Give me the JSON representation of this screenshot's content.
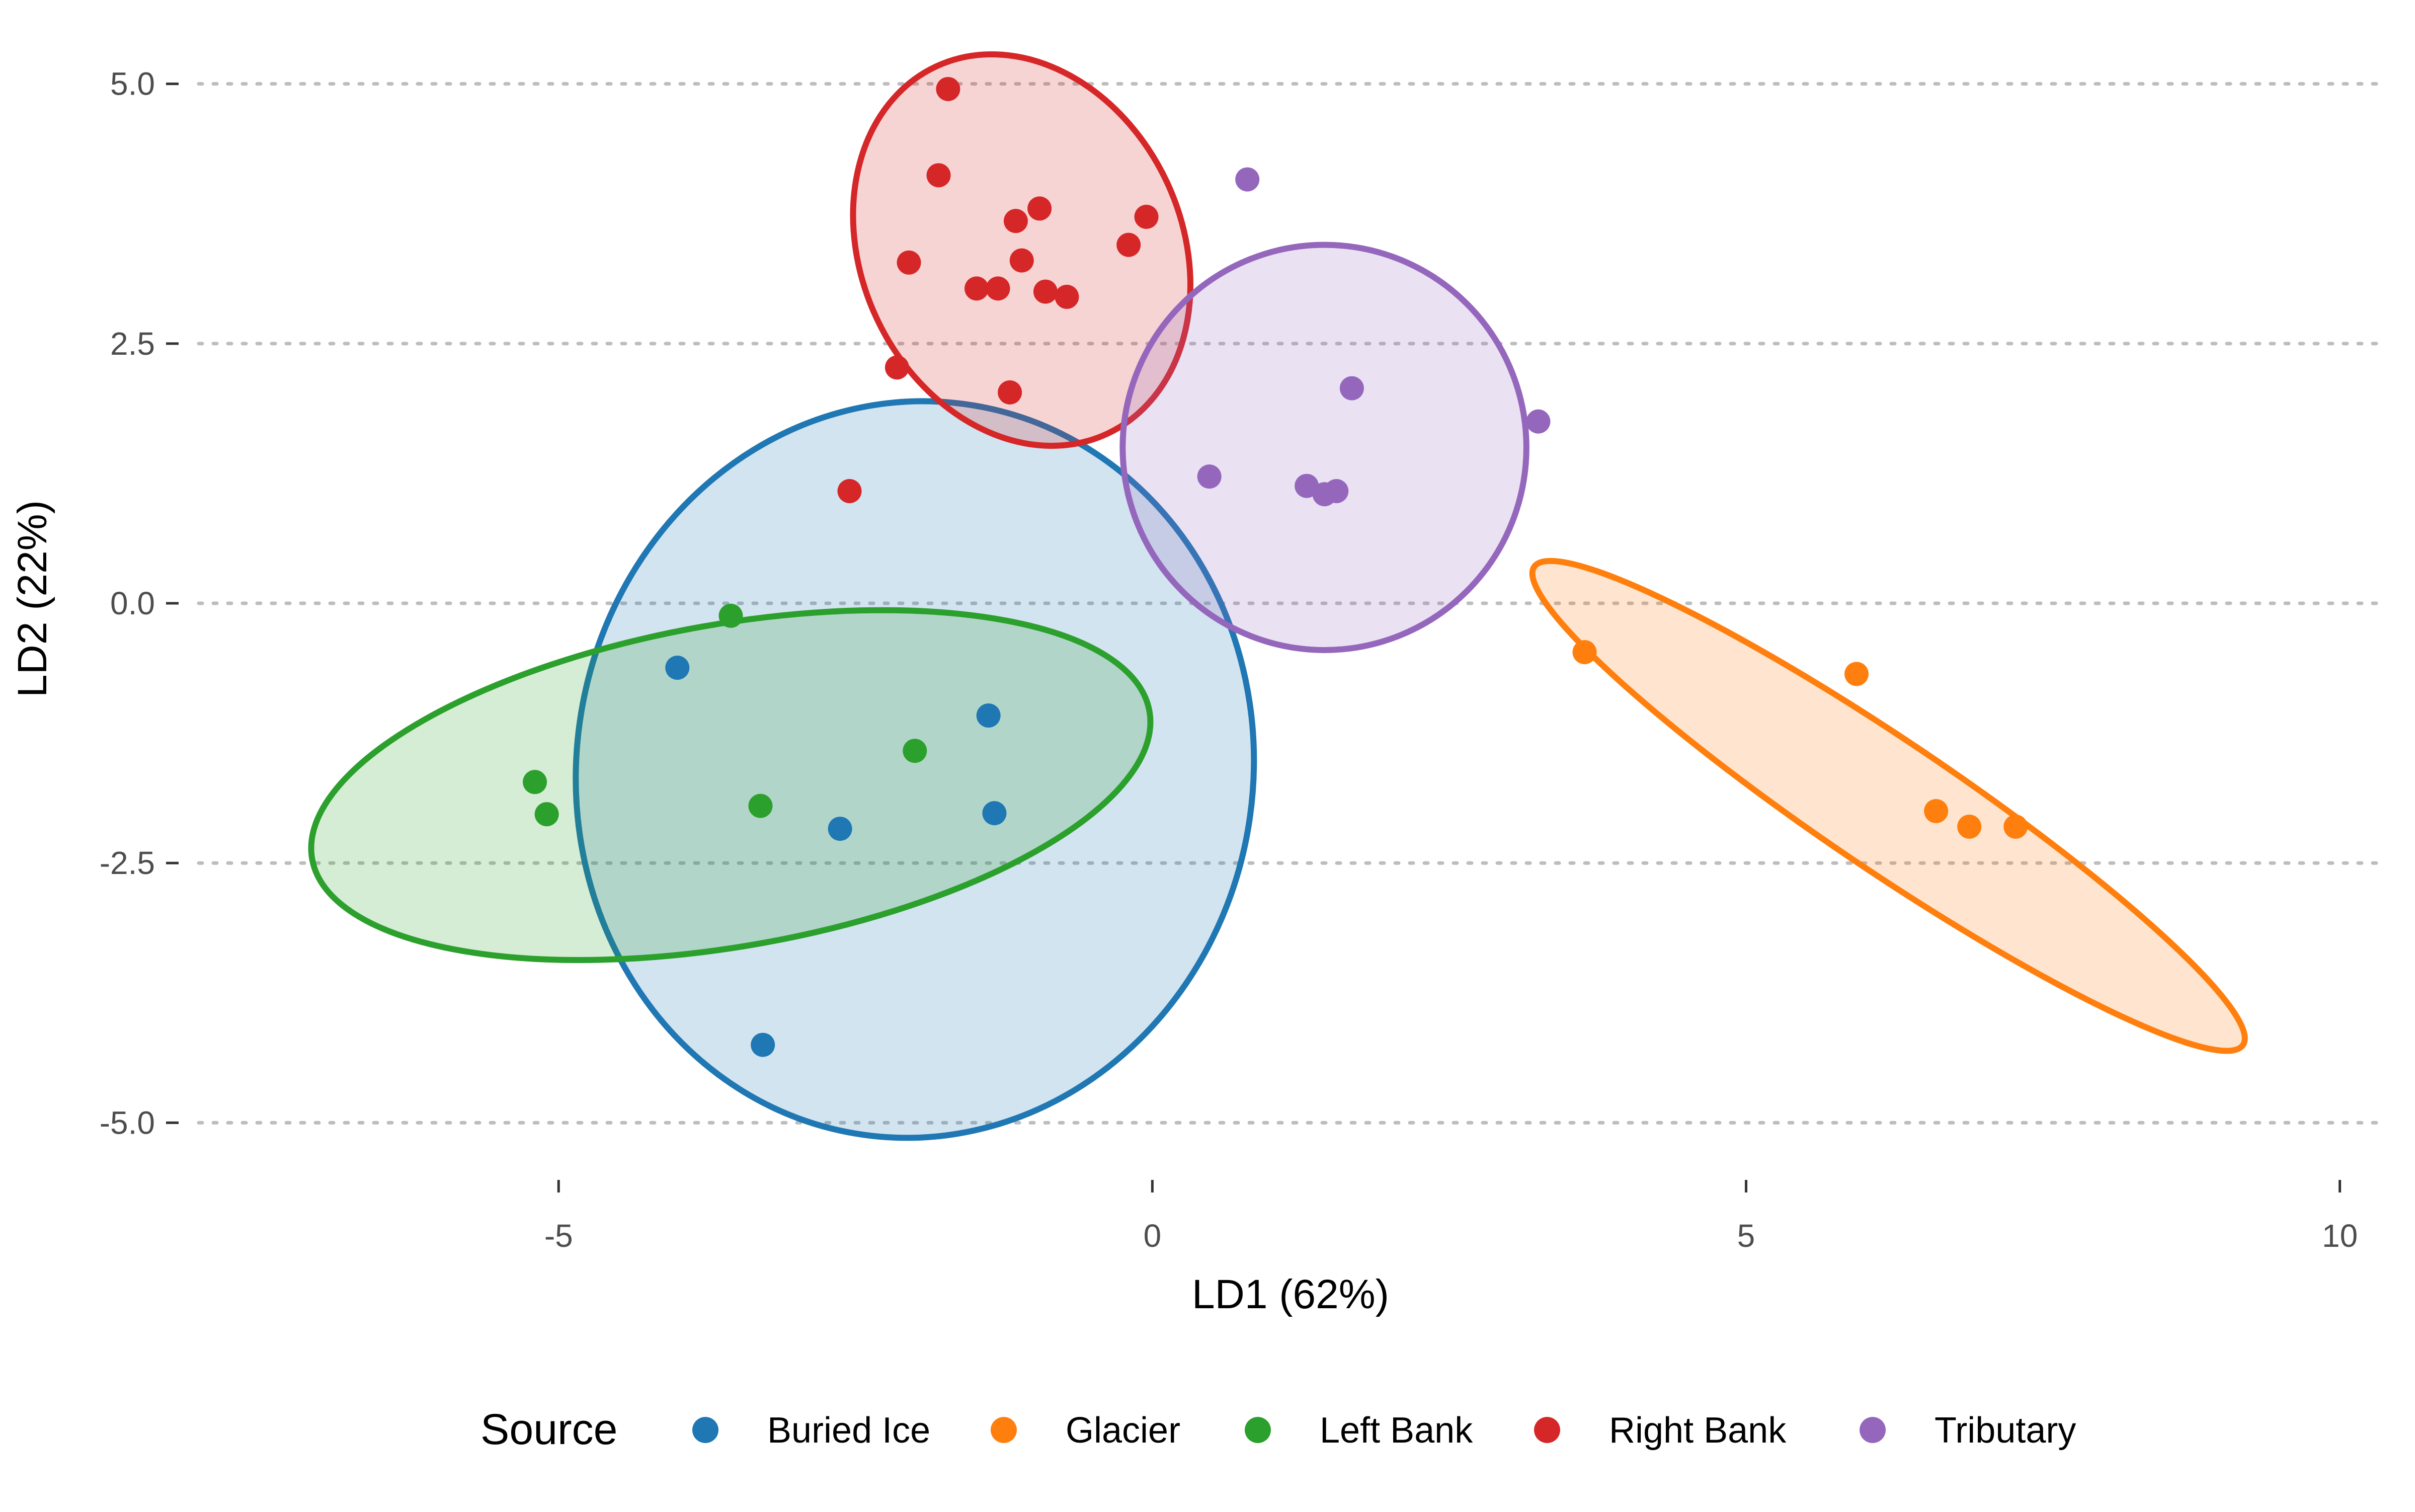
{
  "chart_data": {
    "type": "scatter",
    "title": "",
    "xlabel": "LD1 (62%)",
    "ylabel": "LD2 (22%)",
    "xlim": [
      -8.2,
      10.4
    ],
    "ylim": [
      -5.55,
      5.25
    ],
    "x_ticks": [
      -5,
      0,
      5,
      10
    ],
    "x_tick_labels": [
      "-5",
      "0",
      "5",
      "10"
    ],
    "y_ticks": [
      5.0,
      2.5,
      0.0,
      -2.5,
      -5.0
    ],
    "y_tick_labels": [
      "5.0",
      "2.5",
      "0.0",
      "-2.5",
      "-5.0"
    ],
    "grid": "horizontal dotted",
    "legend": {
      "title": "Source",
      "position": "bottom",
      "entries": [
        "Buried Ice",
        "Glacier",
        "Left Bank",
        "Right Bank",
        "Tributary"
      ]
    },
    "series": [
      {
        "name": "Buried Ice",
        "color": "#1f77b4",
        "points": [
          [
            -4.0,
            -0.62
          ],
          [
            -1.38,
            -1.08
          ],
          [
            -1.33,
            -2.02
          ],
          [
            -2.63,
            -2.17
          ],
          [
            -3.28,
            -4.25
          ]
        ],
        "ellipse": {
          "center": [
            -2.0,
            -1.6
          ],
          "semi_axes": [
            2.85,
            3.55
          ],
          "angle_deg": -8
        }
      },
      {
        "name": "Glacier",
        "color": "#ff7f0e",
        "points": [
          [
            3.64,
            -0.47
          ],
          [
            5.93,
            -0.68
          ],
          [
            6.6,
            -2.0
          ],
          [
            6.88,
            -2.15
          ],
          [
            7.27,
            -2.15
          ]
        ],
        "ellipse": {
          "center": [
            6.2,
            -1.95
          ],
          "semi_axes": [
            3.6,
            0.62
          ],
          "angle_deg": -34
        }
      },
      {
        "name": "Left Bank",
        "color": "#2ca02c",
        "points": [
          [
            -3.55,
            -0.12
          ],
          [
            -5.2,
            -1.72
          ],
          [
            -5.1,
            -2.03
          ],
          [
            -3.3,
            -1.95
          ],
          [
            -2.0,
            -1.42
          ]
        ],
        "ellipse": {
          "center": [
            -3.55,
            -1.75
          ],
          "semi_axes": [
            3.58,
            1.55
          ],
          "angle_deg": 10
        }
      },
      {
        "name": "Right Bank",
        "color": "#d62728",
        "points": [
          [
            -1.72,
            4.95
          ],
          [
            -1.8,
            4.12
          ],
          [
            -0.95,
            3.8
          ],
          [
            -1.15,
            3.68
          ],
          [
            -0.05,
            3.72
          ],
          [
            -0.2,
            3.45
          ],
          [
            -2.05,
            3.28
          ],
          [
            -1.1,
            3.3
          ],
          [
            -1.48,
            3.03
          ],
          [
            -1.3,
            3.03
          ],
          [
            -0.9,
            3.0
          ],
          [
            -0.72,
            2.95
          ],
          [
            -2.15,
            2.27
          ],
          [
            -1.2,
            2.03
          ],
          [
            -2.55,
            1.08
          ]
        ],
        "ellipse": {
          "center": [
            -1.1,
            3.4
          ],
          "semi_axes": [
            1.35,
            1.95
          ],
          "angle_deg": 25
        }
      },
      {
        "name": "Tributary",
        "color": "#9467bd",
        "points": [
          [
            0.8,
            4.08
          ],
          [
            1.68,
            2.07
          ],
          [
            3.25,
            1.75
          ],
          [
            0.48,
            1.22
          ],
          [
            1.3,
            1.13
          ],
          [
            1.45,
            1.05
          ],
          [
            1.55,
            1.08
          ]
        ],
        "ellipse": {
          "center": [
            1.45,
            1.5
          ],
          "semi_axes": [
            1.7,
            1.95
          ],
          "angle_deg": 0
        }
      }
    ]
  }
}
